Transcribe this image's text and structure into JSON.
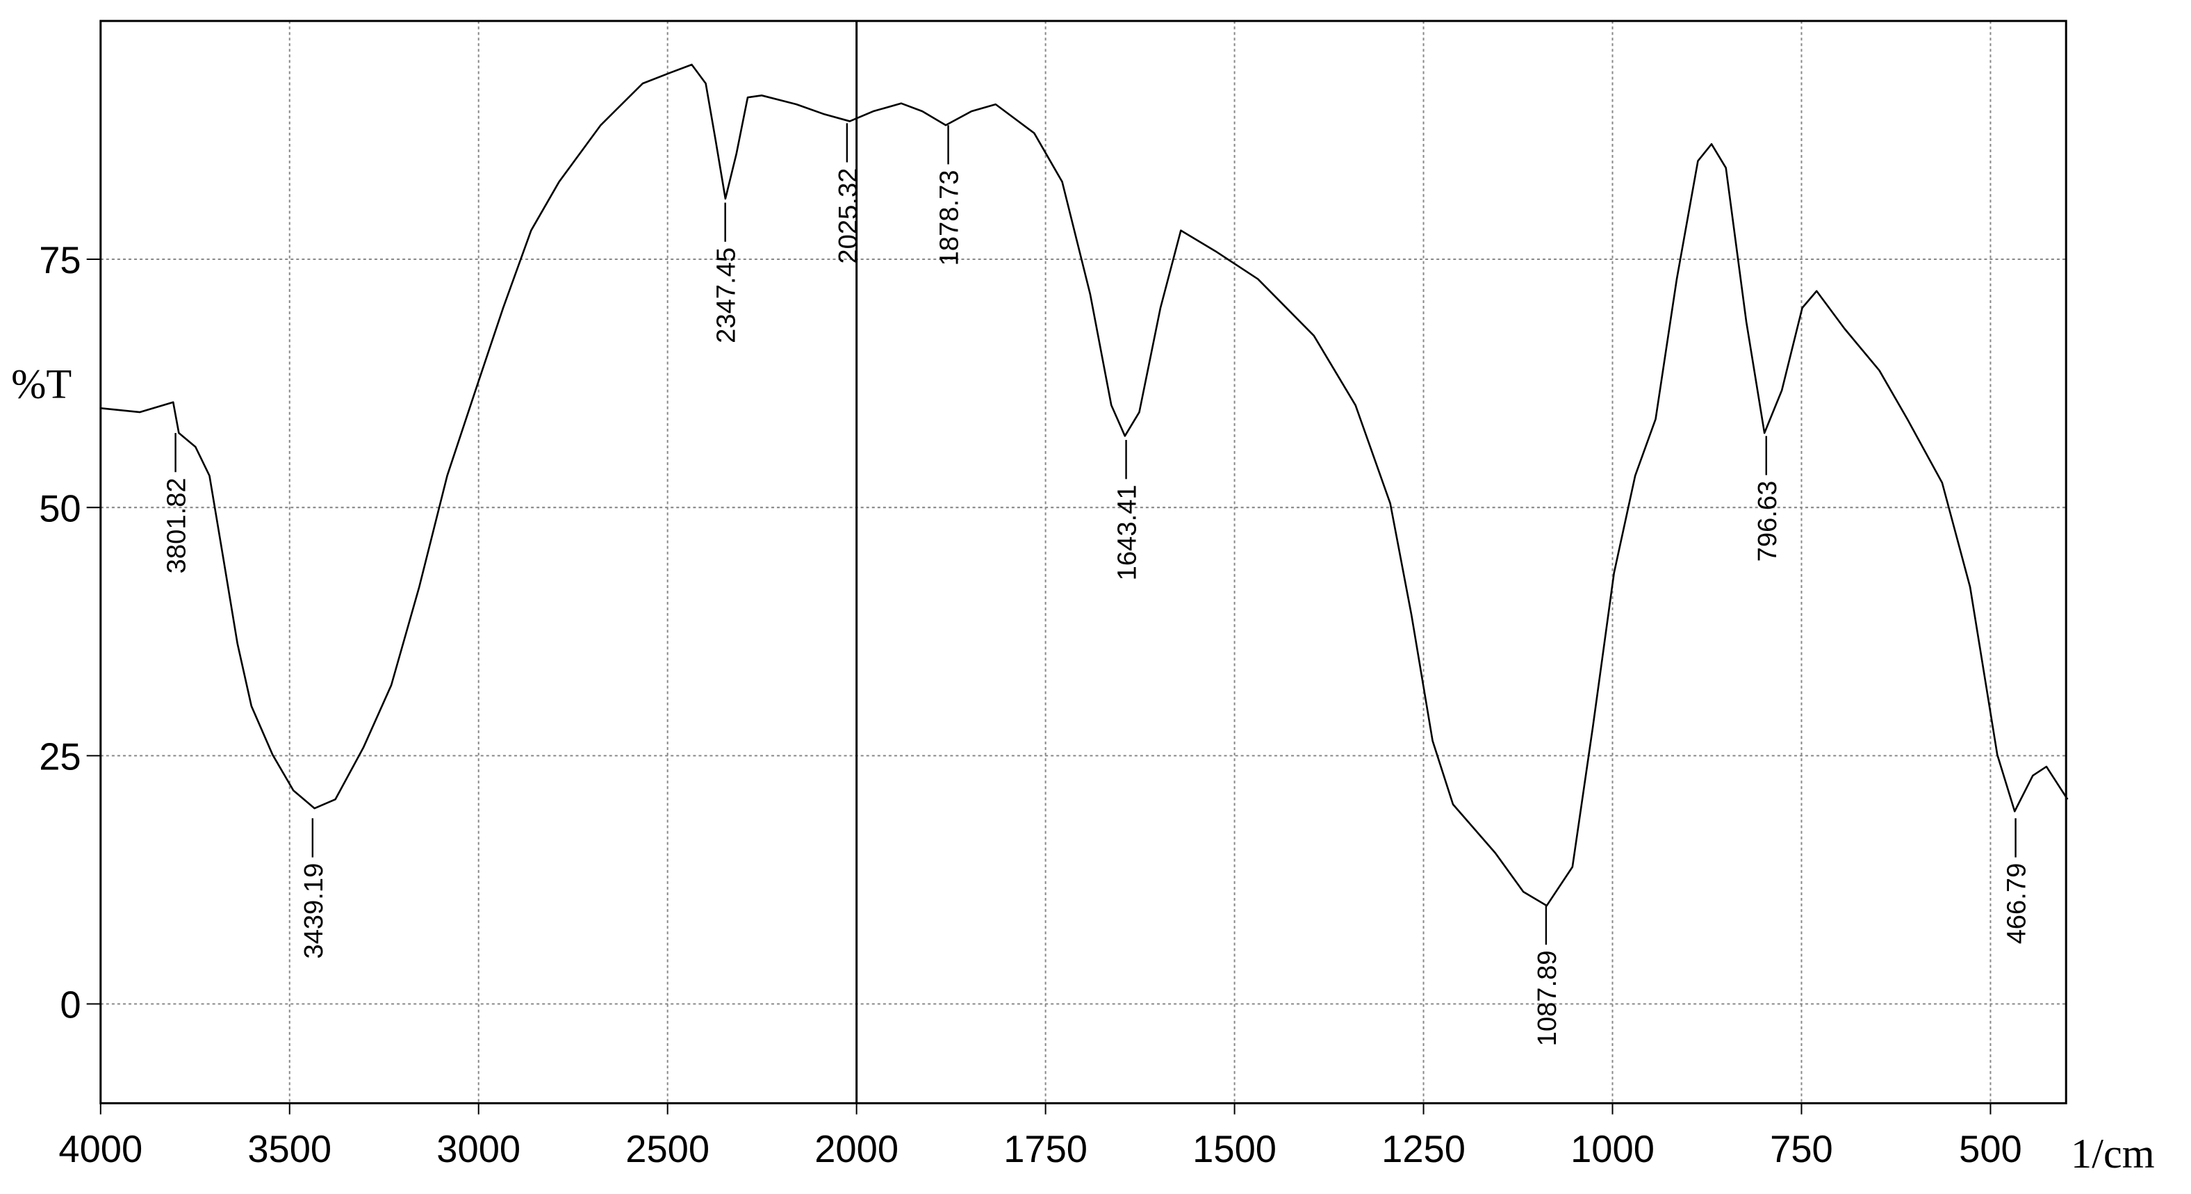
{
  "chart_data": {
    "type": "line",
    "y_label": "%T",
    "x_label": "1/cm",
    "xlim": [
      4000,
      400
    ],
    "ylim": [
      -10,
      99
    ],
    "xticks": [
      4000,
      3500,
      3000,
      2500,
      2000,
      1750,
      1500,
      1250,
      1000,
      750,
      500
    ],
    "yticks": [
      0,
      25,
      50,
      75
    ],
    "grid": true,
    "series": [
      {
        "color": "#000000",
        "x": [
          4000,
          3896,
          3808,
          3793,
          3749,
          3712,
          3675,
          3638,
          3601,
          3545,
          3490,
          3434,
          3379,
          3305,
          3231,
          3157,
          3083,
          3009,
          2935,
          2861,
          2787,
          2677,
          2566,
          2492,
          2436,
          2399,
          2373,
          2347,
          2318,
          2288,
          2251,
          2159,
          2085,
          2018,
          1978,
          1941,
          1913,
          1882,
          1848,
          1816,
          1765,
          1728,
          1691,
          1663,
          1645,
          1626,
          1598,
          1571,
          1525,
          1469,
          1395,
          1340,
          1294,
          1266,
          1238,
          1211,
          1155,
          1118,
          1087,
          1053,
          1026,
          998,
          970,
          943,
          915,
          887,
          869,
          850,
          823,
          799,
          776,
          749,
          730,
          693,
          647,
          610,
          564,
          527,
          491,
          468,
          444,
          426,
          398
        ],
        "values": [
          60.0,
          59.6,
          60.6,
          57.5,
          56.1,
          53.2,
          44.8,
          36.3,
          30.0,
          25.1,
          21.5,
          19.7,
          20.6,
          25.8,
          32.1,
          42.0,
          53.2,
          61.7,
          70.1,
          77.9,
          82.8,
          88.5,
          92.7,
          93.8,
          94.6,
          92.7,
          87.0,
          81.1,
          85.6,
          91.3,
          91.5,
          90.6,
          89.6,
          88.9,
          89.9,
          90.7,
          89.9,
          88.5,
          89.9,
          90.6,
          87.7,
          82.8,
          71.5,
          60.3,
          57.2,
          59.6,
          70.1,
          77.9,
          75.8,
          73.0,
          67.3,
          60.3,
          50.4,
          39.2,
          26.5,
          20.1,
          15.2,
          11.3,
          9.9,
          13.8,
          27.9,
          43.4,
          53.2,
          58.9,
          73.0,
          84.9,
          86.6,
          84.2,
          68.7,
          57.5,
          61.8,
          70.1,
          71.8,
          68.0,
          63.8,
          58.9,
          52.5,
          42.0,
          25.1,
          19.4,
          23.0,
          23.9,
          20.6
        ]
      }
    ],
    "peaks": {
      "x": [
        3801.82,
        3439.19,
        2347.45,
        2025.32,
        1878.73,
        1643.41,
        1087.89,
        796.63,
        466.79
      ],
      "y": [
        57.5,
        18.7,
        80.7,
        88.7,
        88.5,
        56.8,
        9.9,
        57.2,
        18.7
      ]
    }
  }
}
